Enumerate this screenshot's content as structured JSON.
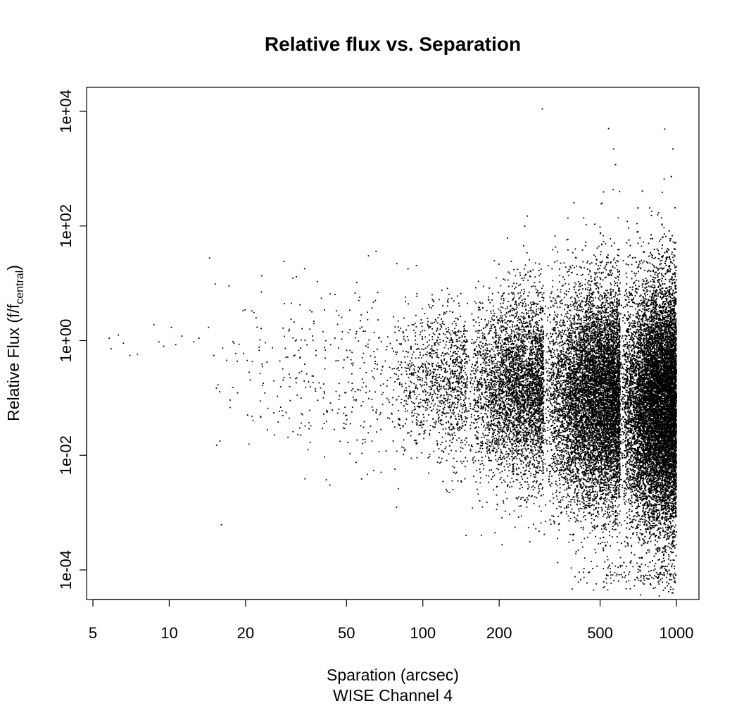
{
  "chart_data": {
    "type": "scatter",
    "title": "Relative flux vs. Separation",
    "xlabel": "Sparation (arcsec)",
    "xlabel_line2": "WISE Channel 4",
    "ylabel_main": "Relative Flux (f/f",
    "ylabel_sub": "central",
    "ylabel_end": ")",
    "xscale": "log",
    "yscale": "log",
    "xlim": [
      5,
      1000
    ],
    "ylim": [
      5e-05,
      15000
    ],
    "x_ticks": [
      5,
      10,
      20,
      50,
      100,
      200,
      500,
      1000
    ],
    "x_tick_labels": [
      "5",
      "10",
      "20",
      "50",
      "100",
      "200",
      "500",
      "1000"
    ],
    "y_ticks": [
      0.0001,
      0.01,
      1,
      100,
      10000
    ],
    "y_tick_labels": [
      "1e-04",
      "1e-02",
      "1e+00",
      "1e+02",
      "1e+04"
    ],
    "grid": false,
    "legend": "none",
    "point_color": "#000000",
    "series": [
      {
        "values": [
          [
            5.8,
            1.1
          ],
          [
            6.3,
            1.25
          ],
          [
            6.6,
            0.9
          ],
          [
            5.9,
            0.72
          ],
          [
            7.0,
            0.55
          ],
          [
            7.5,
            0.58
          ],
          [
            8.7,
            1.9
          ],
          [
            9.1,
            0.95
          ],
          [
            9.5,
            0.8
          ],
          [
            10.2,
            1.7
          ],
          [
            10.6,
            0.85
          ],
          [
            11.2,
            1.2
          ],
          [
            12.5,
            0.95
          ],
          [
            13.1,
            1.1
          ],
          [
            14.3,
            1.7
          ],
          [
            15.0,
            0.55
          ],
          [
            17.2,
            9.0
          ],
          [
            18.0,
            0.9
          ],
          [
            20.3,
            0.45
          ],
          [
            22.0,
            2.5
          ],
          [
            23.5,
            0.18
          ],
          [
            26.9,
            0.038
          ],
          [
            30.0,
            0.09
          ],
          [
            31.7,
            13.0
          ],
          [
            34.2,
            18.0
          ],
          [
            39.8,
            5.5
          ],
          [
            40.8,
            0.036
          ],
          [
            45.0,
            1.1
          ],
          [
            54.6,
            0.0075
          ],
          [
            65.0,
            5.0
          ],
          [
            79.0,
            22.0
          ],
          [
            80.2,
            0.06
          ],
          [
            95.0,
            0.035
          ],
          [
            120.0,
            0.0035
          ],
          [
            148.0,
            0.0004
          ],
          [
            170.0,
            0.0004
          ],
          [
            296.0,
            11000.0
          ],
          [
            540.0,
            5000.0
          ],
          [
            565.0,
            2200.0
          ],
          [
            597.0,
            400.0
          ],
          [
            510.0,
            250.0
          ],
          [
            900.0,
            4900.0
          ],
          [
            800.0,
            180.0
          ],
          [
            850.0,
            170.0
          ],
          [
            700.0,
            110.0
          ],
          [
            640.0,
            120.0
          ],
          [
            980.0,
            40.0
          ],
          [
            950.0,
            60.0
          ]
        ]
      }
    ],
    "density_clusters": [
      {
        "x_range": [
          14,
          70
        ],
        "center": 0.25,
        "spread": 0.75,
        "count": 320
      },
      {
        "x_range": [
          70,
          150
        ],
        "center": 0.18,
        "spread": 0.65,
        "count": 1200
      },
      {
        "x_range": [
          150,
          300
        ],
        "center": 0.14,
        "spread": 0.8,
        "count": 4200
      },
      {
        "x_range": [
          300,
          600
        ],
        "center": 0.1,
        "spread": 0.95,
        "count": 9000
      },
      {
        "x_range": [
          600,
          1000
        ],
        "center": 0.07,
        "spread": 1.05,
        "count": 16000
      },
      {
        "x_range": [
          380,
          1000
        ],
        "center": 8e-05,
        "spread": 0.12,
        "count": 140
      }
    ]
  }
}
